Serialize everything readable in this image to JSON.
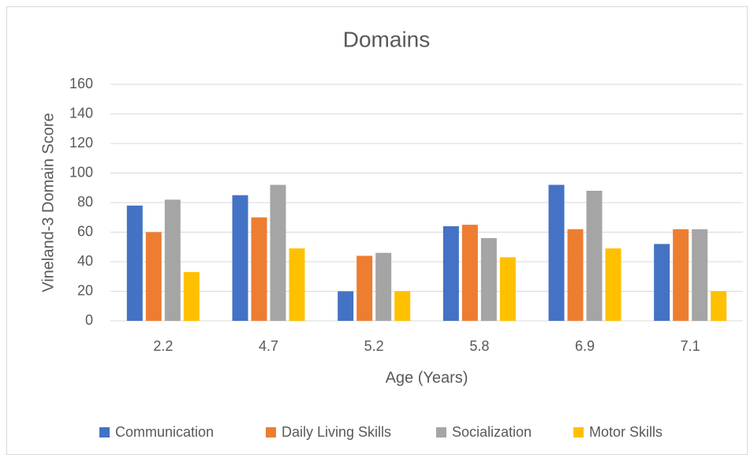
{
  "chart_data": {
    "type": "bar",
    "title": "Domains",
    "x_label": "Age (Years)",
    "y_label": "Vineland-3 Domain Score",
    "categories": [
      "2.2",
      "4.7",
      "5.2",
      "5.8",
      "6.9",
      "7.1"
    ],
    "series": [
      {
        "name": "Communication",
        "color": "#4472c4",
        "values": [
          78,
          85,
          20,
          64,
          92,
          52
        ]
      },
      {
        "name": "Daily Living Skills",
        "color": "#ed7d31",
        "values": [
          60,
          70,
          44,
          65,
          62,
          62
        ]
      },
      {
        "name": "Socialization",
        "color": "#a5a5a5",
        "values": [
          82,
          92,
          46,
          56,
          88,
          62
        ]
      },
      {
        "name": "Motor Skills",
        "color": "#ffc000",
        "values": [
          33,
          49,
          20,
          43,
          49,
          20
        ]
      }
    ],
    "ylim": [
      0,
      160
    ],
    "yticks": [
      0,
      20,
      40,
      60,
      80,
      100,
      120,
      140,
      160
    ],
    "grid": true,
    "legend": "bottom"
  }
}
